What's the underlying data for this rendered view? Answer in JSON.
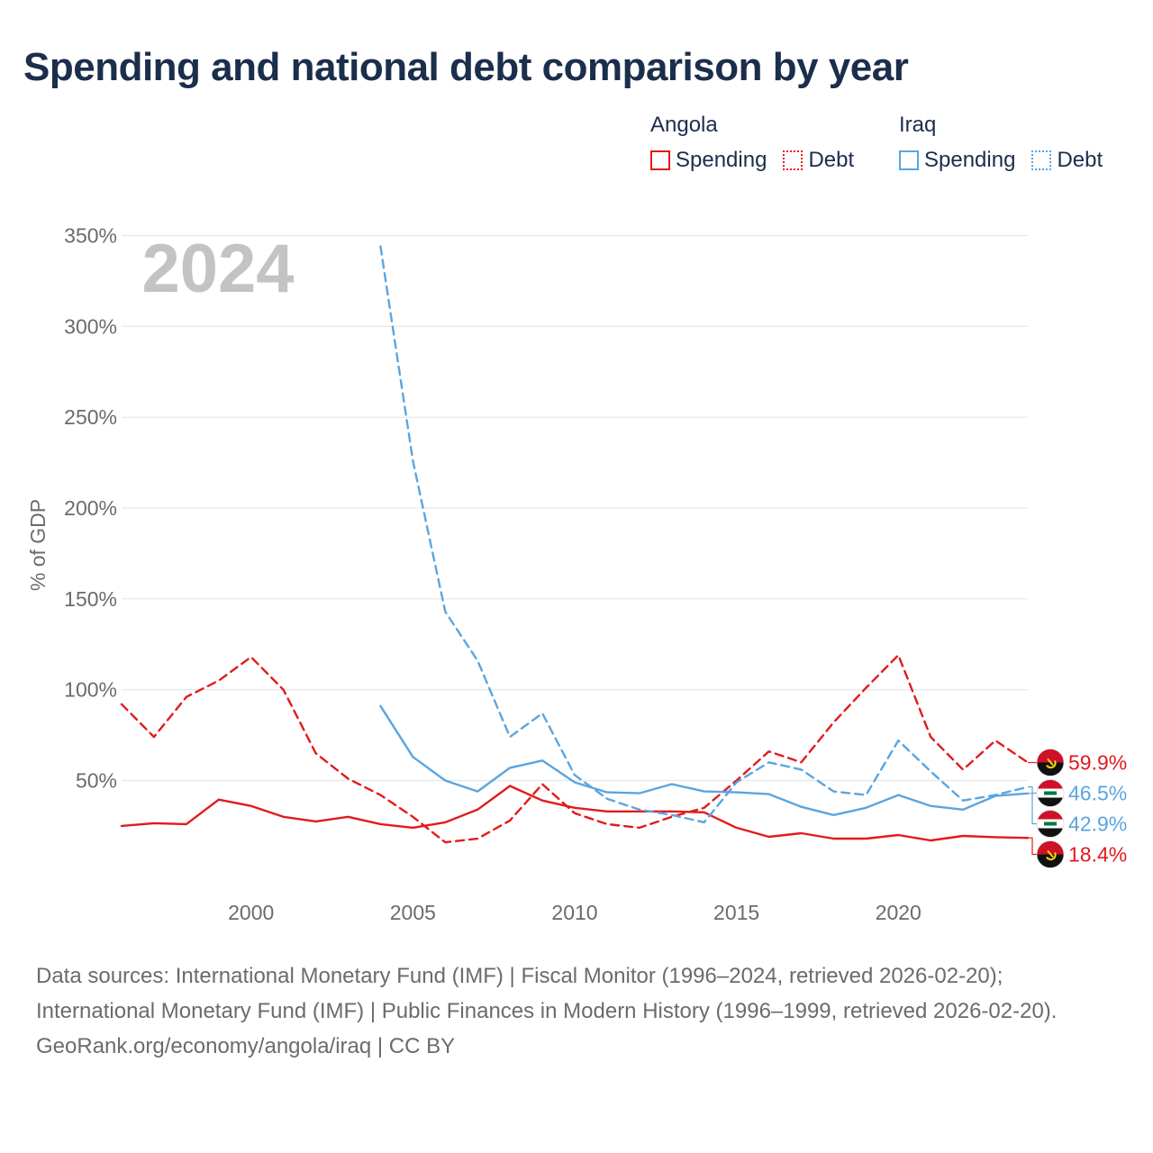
{
  "title": "Spending and national debt comparison by year",
  "legend": {
    "groups": [
      {
        "name": "Angola",
        "entries": [
          {
            "label": "Spending",
            "style": "solid",
            "color": "#e31a1c"
          },
          {
            "label": "Debt",
            "style": "dotted",
            "color": "#e31a1c"
          }
        ]
      },
      {
        "name": "Iraq",
        "entries": [
          {
            "label": "Spending",
            "style": "solid",
            "color": "#5aa5e0"
          },
          {
            "label": "Debt",
            "style": "dotted",
            "color": "#5aa5e0"
          }
        ]
      }
    ]
  },
  "chart_data": {
    "type": "line",
    "year_label": "2024",
    "ylabel": "% of GDP",
    "xlabel": "",
    "xlim": [
      1996,
      2024
    ],
    "ylim": [
      -30,
      350
    ],
    "yticks": [
      50,
      100,
      150,
      200,
      250,
      300,
      350
    ],
    "ytick_labels": [
      "50%",
      "100%",
      "150%",
      "200%",
      "250%",
      "300%",
      "350%"
    ],
    "xticks": [
      2000,
      2005,
      2010,
      2015,
      2020
    ],
    "xtick_labels": [
      "2000",
      "2005",
      "2010",
      "2015",
      "2020"
    ],
    "grid": true,
    "series": [
      {
        "name": "Angola Spending",
        "country": "Angola",
        "kind": "Spending",
        "color": "#e31a1c",
        "dash": "solid",
        "x": [
          1996,
          1997,
          1998,
          1999,
          2000,
          2001,
          2002,
          2003,
          2004,
          2005,
          2006,
          2007,
          2008,
          2009,
          2010,
          2011,
          2012,
          2013,
          2014,
          2015,
          2016,
          2017,
          2018,
          2019,
          2020,
          2021,
          2022,
          2023,
          2024
        ],
        "y": [
          25,
          26.5,
          26,
          39.5,
          36,
          30,
          27.5,
          30,
          26,
          24,
          27,
          34,
          47,
          39,
          35,
          33,
          33,
          33,
          32.5,
          24,
          19,
          21,
          18,
          18,
          20,
          17,
          19.5,
          18.8,
          18.4
        ],
        "end_label": "18.4%"
      },
      {
        "name": "Angola Debt",
        "country": "Angola",
        "kind": "Debt",
        "color": "#e31a1c",
        "dash": "dashed",
        "x": [
          1996,
          1997,
          1998,
          1999,
          2000,
          2001,
          2002,
          2003,
          2004,
          2005,
          2006,
          2007,
          2008,
          2009,
          2010,
          2011,
          2012,
          2013,
          2014,
          2015,
          2016,
          2017,
          2018,
          2019,
          2020,
          2021,
          2022,
          2023,
          2024
        ],
        "y": [
          92,
          74,
          96,
          105,
          118,
          100,
          65,
          51,
          42,
          30,
          16,
          18,
          28,
          48,
          32,
          26,
          24,
          30,
          35,
          50,
          66,
          60,
          82,
          101,
          119,
          74,
          56,
          72,
          59.9
        ],
        "end_label": "59.9%"
      },
      {
        "name": "Iraq Spending",
        "country": "Iraq",
        "kind": "Spending",
        "color": "#5aa5e0",
        "dash": "solid",
        "x": [
          2004,
          2005,
          2006,
          2007,
          2008,
          2009,
          2010,
          2011,
          2012,
          2013,
          2014,
          2015,
          2016,
          2017,
          2018,
          2019,
          2020,
          2021,
          2022,
          2023,
          2024
        ],
        "y": [
          91,
          63,
          50,
          44,
          57,
          61,
          49,
          43.5,
          43,
          48,
          44,
          43.5,
          42.5,
          35.5,
          31,
          35,
          42,
          36,
          34,
          41.5,
          42.9
        ],
        "end_label": "42.9%"
      },
      {
        "name": "Iraq Debt",
        "country": "Iraq",
        "kind": "Debt",
        "color": "#5aa5e0",
        "dash": "dashed",
        "x": [
          2004,
          2005,
          2006,
          2007,
          2008,
          2009,
          2010,
          2011,
          2012,
          2013,
          2014,
          2015,
          2016,
          2017,
          2018,
          2019,
          2020,
          2021,
          2022,
          2023,
          2024
        ],
        "y": [
          344,
          226,
          143,
          116,
          74,
          87,
          53,
          40,
          34,
          31,
          27,
          49,
          60,
          56,
          44,
          42,
          72,
          55,
          39,
          42,
          46.5
        ],
        "end_label": "46.5%"
      }
    ]
  },
  "footer": {
    "sources": "Data sources: International Monetary Fund (IMF) | Fiscal Monitor (1996–2024, retrieved 2026-02-20); International Monetary Fund (IMF) | Public Finances in Modern History (1996–1999, retrieved 2026-02-20).",
    "credit": "GeoRank.org/economy/angola/iraq | CC BY"
  }
}
